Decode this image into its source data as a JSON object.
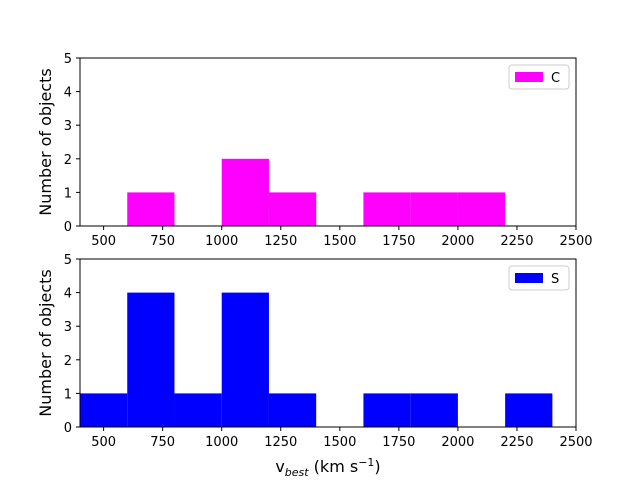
{
  "chart_data": [
    {
      "type": "bar",
      "ylabel": "Number of objects",
      "xlim": [
        400,
        2500
      ],
      "ylim": [
        0,
        5
      ],
      "xticks": [
        500,
        750,
        1000,
        1250,
        1500,
        1750,
        2000,
        2250,
        2500
      ],
      "yticks": [
        0,
        1,
        2,
        3,
        4,
        5
      ],
      "legend_position": "top-right",
      "color": "#ff00ff",
      "series": [
        {
          "name": "C",
          "bins": [
            {
              "x0": 600,
              "x1": 800,
              "count": 1
            },
            {
              "x0": 1000,
              "x1": 1200,
              "count": 2
            },
            {
              "x0": 1200,
              "x1": 1400,
              "count": 1
            },
            {
              "x0": 1600,
              "x1": 1800,
              "count": 1
            },
            {
              "x0": 1800,
              "x1": 2000,
              "count": 1
            },
            {
              "x0": 2000,
              "x1": 2200,
              "count": 1
            }
          ]
        }
      ]
    },
    {
      "type": "bar",
      "ylabel": "Number of objects",
      "xlabel_main": "v",
      "xlabel_sub": "best",
      "xlabel_unit": " (km s",
      "xlabel_exp": "−1",
      "xlabel_close": ")",
      "xlim": [
        400,
        2500
      ],
      "ylim": [
        0,
        5
      ],
      "xticks": [
        500,
        750,
        1000,
        1250,
        1500,
        1750,
        2000,
        2250,
        2500
      ],
      "yticks": [
        0,
        1,
        2,
        3,
        4,
        5
      ],
      "legend_position": "top-right",
      "color": "#0000ff",
      "series": [
        {
          "name": "S",
          "bins": [
            {
              "x0": 400,
              "x1": 600,
              "count": 1
            },
            {
              "x0": 600,
              "x1": 800,
              "count": 4
            },
            {
              "x0": 800,
              "x1": 1000,
              "count": 1
            },
            {
              "x0": 1000,
              "x1": 1200,
              "count": 4
            },
            {
              "x0": 1200,
              "x1": 1400,
              "count": 1
            },
            {
              "x0": 1600,
              "x1": 1800,
              "count": 1
            },
            {
              "x0": 1800,
              "x1": 2000,
              "count": 1
            },
            {
              "x0": 2200,
              "x1": 2400,
              "count": 1
            }
          ]
        }
      ]
    }
  ]
}
